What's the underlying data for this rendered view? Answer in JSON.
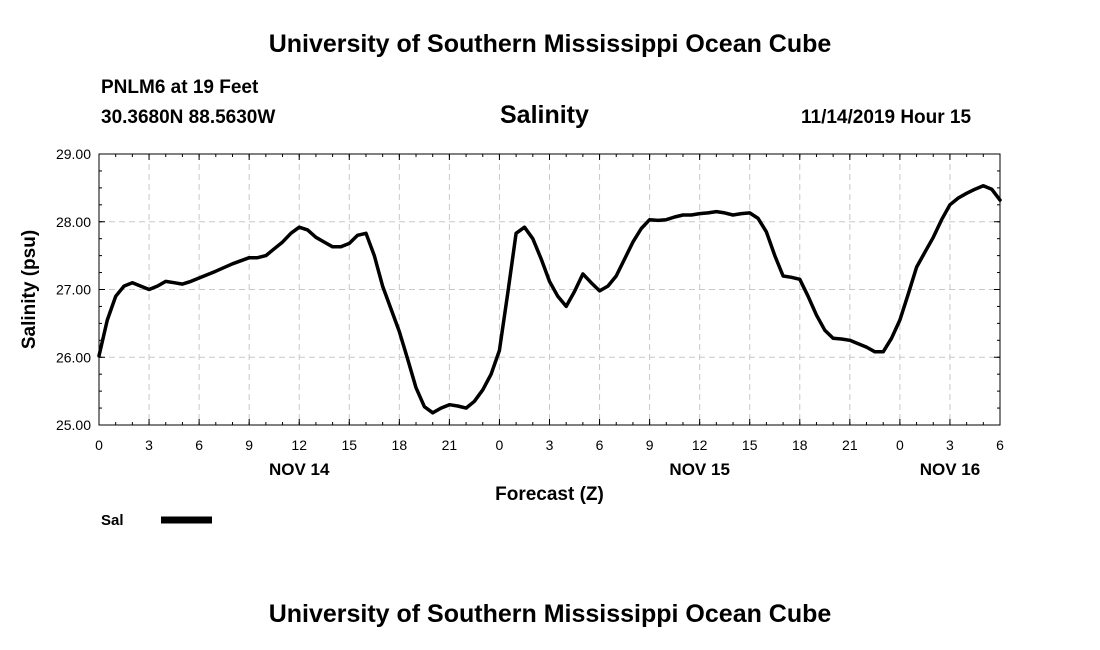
{
  "header": {
    "title": "University of Southern Mississippi Ocean Cube",
    "station": "PNLM6 at 19 Feet",
    "location": "30.3680N 88.5630W",
    "variable": "Salinity",
    "issued": "11/14/2019 Hour 15"
  },
  "footer": {
    "title": "University of Southern Mississippi Ocean Cube"
  },
  "chart_data": {
    "type": "line",
    "title": "Salinity",
    "xlabel": "Forecast (Z)",
    "ylabel": "Salinity (psu)",
    "ylim": [
      25,
      29
    ],
    "xlim": [
      0,
      54
    ],
    "x_unit": "hours since Nov 14 00Z",
    "grid": true,
    "y_ticks": [
      "25.00",
      "26.00",
      "27.00",
      "28.00",
      "29.00"
    ],
    "x_ticks": [
      "0",
      "3",
      "6",
      "9",
      "12",
      "15",
      "18",
      "21",
      "0",
      "3",
      "6",
      "9",
      "12",
      "15",
      "18",
      "21",
      "0",
      "3",
      "6"
    ],
    "date_labels": [
      {
        "label": "NOV 14",
        "hour": 12
      },
      {
        "label": "NOV 15",
        "hour": 36
      },
      {
        "label": "NOV 16",
        "hour": 51
      }
    ],
    "legend": [
      {
        "name": "Sal",
        "color": "#000000"
      }
    ],
    "series": [
      {
        "name": "Sal",
        "x": [
          0,
          0.5,
          1,
          1.5,
          2,
          2.5,
          3,
          3.5,
          4,
          4.5,
          5,
          5.5,
          6,
          7,
          8,
          9,
          9.5,
          10,
          10.5,
          11,
          11.5,
          12,
          12.5,
          13,
          13.5,
          14,
          14.5,
          15,
          15.5,
          16,
          16.5,
          17,
          18,
          18.5,
          19,
          19.5,
          20,
          20.5,
          21,
          21.5,
          22,
          22.5,
          23,
          23.5,
          24,
          24.5,
          25,
          25.5,
          26,
          26.5,
          27,
          27.5,
          28,
          28.5,
          29,
          29.5,
          30,
          30.5,
          31,
          31.5,
          32,
          32.5,
          33,
          33.5,
          34,
          34.5,
          35,
          35.5,
          36,
          36.5,
          37,
          37.5,
          38,
          38.5,
          39,
          39.5,
          40,
          40.5,
          41,
          41.5,
          42,
          42.5,
          43,
          43.5,
          44,
          44.5,
          45,
          45.5,
          46,
          46.5,
          47,
          47.5,
          48,
          48.5,
          49,
          49.5,
          50,
          50.5,
          51,
          51.5,
          52,
          52.5,
          53,
          53.5,
          54
        ],
        "values": [
          26.02,
          26.55,
          26.9,
          27.05,
          27.1,
          27.05,
          27.0,
          27.05,
          27.12,
          27.1,
          27.08,
          27.12,
          27.17,
          27.27,
          27.38,
          27.47,
          27.47,
          27.5,
          27.6,
          27.7,
          27.83,
          27.92,
          27.88,
          27.77,
          27.7,
          27.63,
          27.63,
          27.68,
          27.8,
          27.83,
          27.5,
          27.05,
          26.38,
          25.97,
          25.55,
          25.27,
          25.18,
          25.25,
          25.3,
          25.28,
          25.25,
          25.35,
          25.52,
          25.75,
          26.1,
          26.95,
          27.83,
          27.92,
          27.75,
          27.45,
          27.12,
          26.9,
          26.75,
          26.97,
          27.23,
          27.1,
          26.98,
          27.05,
          27.2,
          27.45,
          27.7,
          27.9,
          28.03,
          28.02,
          28.03,
          28.07,
          28.1,
          28.1,
          28.12,
          28.13,
          28.15,
          28.13,
          28.1,
          28.12,
          28.13,
          28.05,
          27.85,
          27.5,
          27.2,
          27.18,
          27.15,
          26.9,
          26.62,
          26.4,
          26.28,
          26.27,
          26.25,
          26.2,
          26.15,
          26.08,
          26.08,
          26.28,
          26.55,
          26.93,
          27.33,
          27.55,
          27.77,
          28.03,
          28.25,
          28.35,
          28.42,
          28.48,
          28.53,
          28.48,
          28.32
        ]
      }
    ]
  }
}
